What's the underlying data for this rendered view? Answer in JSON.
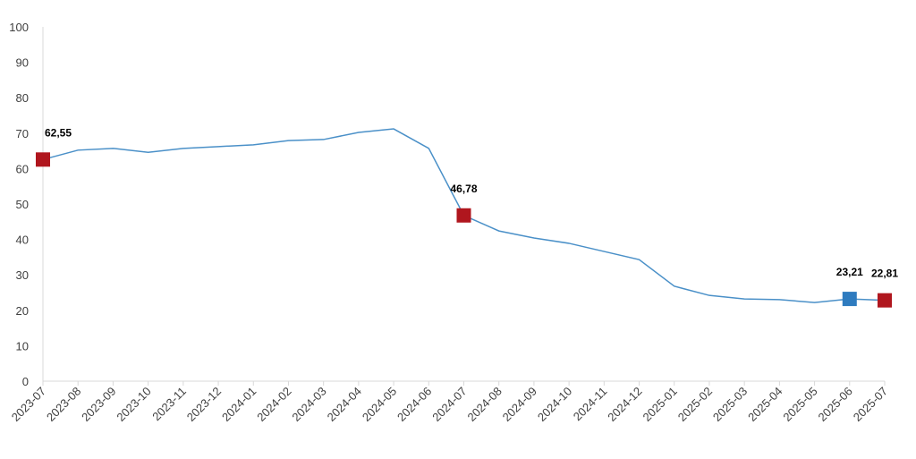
{
  "chart_data": {
    "type": "line",
    "categories": [
      "2023-07",
      "2023-08",
      "2023-09",
      "2023-10",
      "2023-11",
      "2023-12",
      "2024-01",
      "2024-02",
      "2024-03",
      "2024-04",
      "2024-05",
      "2024-06",
      "2024-07",
      "2024-08",
      "2024-09",
      "2024-10",
      "2024-11",
      "2024-12",
      "2025-01",
      "2025-02",
      "2025-03",
      "2025-04",
      "2025-05",
      "2025-06",
      "2025-07"
    ],
    "series": [
      {
        "color": "#4a90c8",
        "values": [
          62.55,
          65.2,
          65.7,
          64.6,
          65.7,
          66.2,
          66.7,
          67.9,
          68.2,
          70.2,
          71.2,
          65.7,
          46.78,
          42.4,
          40.4,
          38.9,
          36.6,
          34.3,
          26.8,
          24.2,
          23.2,
          23.0,
          22.2,
          23.21,
          22.81
        ],
        "value_labels": [
          "62,55",
          null,
          null,
          null,
          null,
          null,
          null,
          null,
          null,
          null,
          null,
          null,
          "46,78",
          null,
          null,
          null,
          null,
          null,
          null,
          null,
          null,
          null,
          null,
          "23,21",
          "22,81"
        ],
        "marker_colors": [
          "#b0161e",
          null,
          null,
          null,
          null,
          null,
          null,
          null,
          null,
          null,
          null,
          null,
          "#b0161e",
          null,
          null,
          null,
          null,
          null,
          null,
          null,
          null,
          null,
          null,
          "#2e7bbf",
          "#b0161e"
        ]
      }
    ],
    "ylim": [
      0,
      100
    ],
    "yticks": [
      0,
      10,
      20,
      30,
      40,
      50,
      60,
      70,
      80,
      90,
      100
    ],
    "grid": false
  }
}
